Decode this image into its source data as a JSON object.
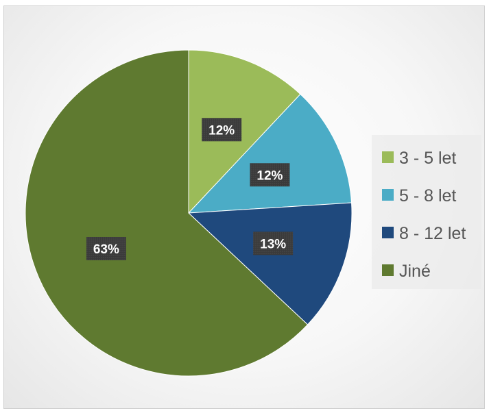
{
  "chart_data": {
    "type": "pie",
    "title": "",
    "start_angle_deg": 0,
    "direction": "clockwise",
    "legend_position": "right",
    "slices": [
      {
        "label": "3 - 5 let",
        "value": 12,
        "display": "12%",
        "color": "#9bbb59"
      },
      {
        "label": "5 - 8 let",
        "value": 12,
        "display": "12%",
        "color": "#4bacc6"
      },
      {
        "label": "8 - 12 let",
        "value": 13,
        "display": "13%",
        "color": "#1f497d"
      },
      {
        "label": "Jiné",
        "value": 63,
        "display": "63%",
        "color": "#5f7a30"
      }
    ]
  }
}
